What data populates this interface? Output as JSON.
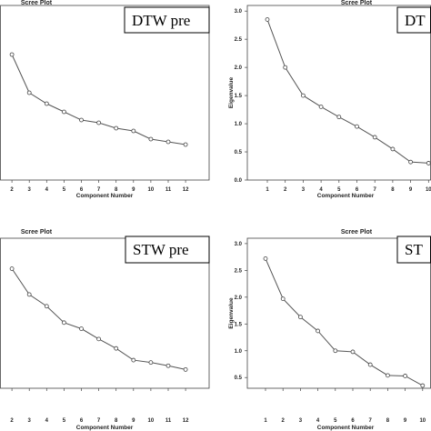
{
  "chart_data": [
    {
      "type": "line",
      "title": "Scree Plot",
      "legend_label": "DTW pre",
      "xlabel": "Component Number",
      "ylabel": "",
      "x": [
        2,
        3,
        4,
        5,
        6,
        7,
        8,
        9,
        10,
        11,
        12
      ],
      "x_ticks": [
        "2",
        "3",
        "4",
        "5",
        "6",
        "7",
        "8",
        "9",
        "10",
        "11",
        "12"
      ],
      "y_ticks": [],
      "values": [
        2.3,
        1.6,
        1.4,
        1.25,
        1.1,
        1.05,
        0.95,
        0.9,
        0.75,
        0.7,
        0.65
      ],
      "ylim": [
        0,
        3.2
      ]
    },
    {
      "type": "line",
      "title": "Scree Plot",
      "legend_label": "DT",
      "xlabel": "Component Number",
      "ylabel": "Eigenvalue",
      "x": [
        1,
        2,
        3,
        4,
        5,
        6,
        7,
        8,
        9,
        10
      ],
      "x_ticks": [
        "1",
        "2",
        "3",
        "4",
        "5",
        "6",
        "7",
        "8",
        "9",
        "10"
      ],
      "y_ticks": [
        "0.0",
        "0.5",
        "1.0",
        "1.5",
        "2.0",
        "2.5",
        "3.0"
      ],
      "values": [
        2.85,
        2.0,
        1.5,
        1.3,
        1.12,
        0.95,
        0.76,
        0.55,
        0.32,
        0.3
      ],
      "ylim": [
        0,
        3.1
      ]
    },
    {
      "type": "line",
      "title": "Scree Plot",
      "legend_label": "STW pre",
      "xlabel": "Component Number",
      "ylabel": "",
      "x": [
        2,
        3,
        4,
        5,
        6,
        7,
        8,
        9,
        10,
        11,
        12
      ],
      "x_ticks": [
        "2",
        "3",
        "4",
        "5",
        "6",
        "7",
        "8",
        "9",
        "10",
        "11",
        "12"
      ],
      "y_ticks": [],
      "values": [
        2.55,
        2.0,
        1.75,
        1.4,
        1.27,
        1.05,
        0.85,
        0.6,
        0.55,
        0.48,
        0.4
      ],
      "ylim": [
        0,
        3.2
      ]
    },
    {
      "type": "line",
      "title": "Scree Plot",
      "legend_label": "ST",
      "xlabel": "Component Number",
      "ylabel": "Eigenvalue",
      "x": [
        1,
        2,
        3,
        4,
        5,
        6,
        7,
        8,
        9,
        10
      ],
      "x_ticks": [
        "1",
        "2",
        "3",
        "4",
        "5",
        "6",
        "7",
        "8",
        "9",
        "10"
      ],
      "y_ticks": [
        "0.5",
        "1.0",
        "1.5",
        "2.0",
        "2.5",
        "3.0"
      ],
      "values": [
        2.72,
        1.97,
        1.63,
        1.37,
        1.0,
        0.98,
        0.74,
        0.54,
        0.53,
        0.35
      ],
      "ylim": [
        0.3,
        3.1
      ]
    }
  ]
}
